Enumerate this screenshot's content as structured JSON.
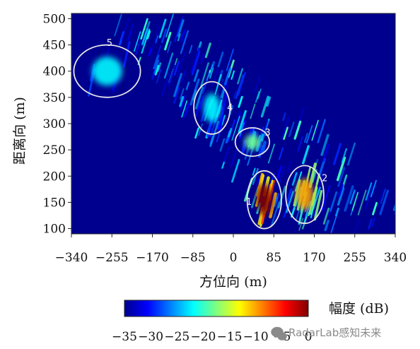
{
  "chart_data": {
    "type": "heatmap",
    "xlabel": "方位向 (m)",
    "ylabel": "距离向 (m)",
    "xlim": [
      -340,
      340
    ],
    "ylim": [
      90,
      510
    ],
    "xticks": [
      "−340",
      "−255",
      "−170",
      "−85",
      "0",
      "85",
      "170",
      "255",
      "340"
    ],
    "xtick_values": [
      -340,
      -255,
      -170,
      -85,
      0,
      85,
      170,
      255,
      340
    ],
    "yticks": [
      "100",
      "150",
      "200",
      "250",
      "300",
      "350",
      "400",
      "450",
      "500"
    ],
    "ytick_values": [
      100,
      150,
      200,
      250,
      300,
      350,
      400,
      450,
      500
    ],
    "colorbar": {
      "label": "幅度 (dB)",
      "ticks": [
        "−35",
        "−30",
        "−25",
        "−20",
        "−15",
        "−10",
        "−5",
        "0"
      ],
      "tick_values": [
        -35,
        -30,
        -25,
        -20,
        -15,
        -10,
        -5,
        0
      ],
      "range": [
        -35,
        0
      ],
      "colormap": "jet"
    },
    "background_level_db": -35,
    "peak_level_db": 0,
    "regions": [
      {
        "label": "1",
        "center": [
          65,
          155
        ],
        "semi_axes": [
          36,
          55
        ],
        "level_db": 0
      },
      {
        "label": "2",
        "center": [
          150,
          165
        ],
        "semi_axes": [
          40,
          55
        ],
        "level_db": -10
      },
      {
        "label": "3",
        "center": [
          40,
          265
        ],
        "semi_axes": [
          36,
          27
        ],
        "level_db": -18
      },
      {
        "label": "4",
        "center": [
          -45,
          330
        ],
        "semi_axes": [
          38,
          50
        ],
        "level_db": -22
      },
      {
        "label": "5",
        "center": [
          -265,
          400
        ],
        "semi_axes": [
          70,
          50
        ],
        "level_db": -22
      }
    ]
  },
  "colors": {
    "background": "#00008f",
    "ellipse": "#e8e8e8"
  },
  "watermark": {
    "text": "RadarLab感知未来",
    "icon": "wechat-icon"
  }
}
